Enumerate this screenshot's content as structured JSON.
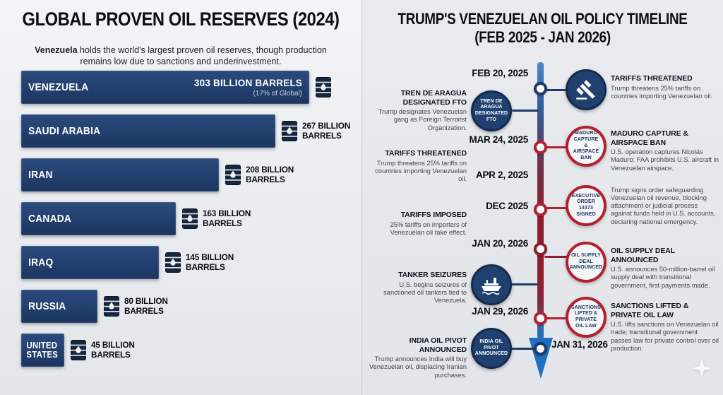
{
  "colors": {
    "navy": "#1e3a66",
    "red": "#b3202e",
    "dark_red": "#8b1f2e",
    "blue": "#1d70c2",
    "bar": "#21406e"
  },
  "left_panel": {
    "title": "GLOBAL PROVEN OIL RESERVES (2024)",
    "subtitle_lead": "Venezuela",
    "subtitle_rest": " holds the world's largest proven oil reserves, though production remains low due to sanctions and underinvestment.",
    "chart_data": {
      "type": "bar",
      "orientation": "horizontal",
      "title": "GLOBAL PROVEN OIL RESERVES (2024)",
      "unit": "billion barrels",
      "xlim": [
        0,
        320
      ],
      "grid": false,
      "legend": "none",
      "categories": [
        "VENEZUELA",
        "SAUDI ARABIA",
        "IRAN",
        "CANADA",
        "IRAQ",
        "RUSSIA",
        "UNITED STATES"
      ],
      "values": [
        303,
        267,
        208,
        163,
        145,
        80,
        45
      ],
      "rows": [
        {
          "country": "VENEZUELA",
          "value": 303,
          "label": "303 BILLION BARRELS",
          "note": "(17% of Global)",
          "label_inside": true
        },
        {
          "country": "SAUDI ARABIA",
          "value": 267,
          "label": "267 BILLION BARRELS"
        },
        {
          "country": "IRAN",
          "value": 208,
          "label": "208 BILLION BARRELS"
        },
        {
          "country": "CANADA",
          "value": 163,
          "label": "163 BILLION BARRELS"
        },
        {
          "country": "IRAQ",
          "value": 145,
          "label": "145 BILLION BARRELS"
        },
        {
          "country": "RUSSIA",
          "value": 80,
          "label": "80 BILLION BARRELS"
        },
        {
          "country": "UNITED STATES",
          "value": 45,
          "label": "45 BILLION BARRELS"
        }
      ]
    }
  },
  "right_panel": {
    "title_line1": "TRUMP'S VENEZUELAN OIL POLICY TIMELINE",
    "title_line2": "(FEB 2025 - JAN 2026)",
    "dates": [
      "FEB 20, 2025",
      "MAR 24, 2025",
      "APR 2, 2025",
      "DEC 2025",
      "JAN 20, 2026",
      "JAN 29, 2026",
      "JAN 31, 2026"
    ],
    "left_events": [
      {
        "heading": "TREN DE ARAGUA DESIGNATED FTO",
        "body": "Trump designates Venezuelan gang as Foreign Terrorist Organization.",
        "badge": "TREN DE ARAGUA DESIGNATED FTO",
        "badge_style": "navy"
      },
      {
        "heading": "TARIFFS THREATENED",
        "body": "Trump threatens 25% tariffs on countries importing Venezuelan oil."
      },
      {
        "heading": "TARIFFS IMPOSED",
        "body": "25% tariffs on importers of Venezuelan oil take effect."
      },
      {
        "heading": "TANKER SEIZURES",
        "body": "U.S. begins seizures of sanctioned oil tankers tied to Venezuela.",
        "badge_icon": "ship",
        "badge_style": "navy"
      },
      {
        "heading": "INDIA OIL PIVOT ANNOUNCED",
        "body": "Trump announces India will buy Venezuelan oil, displacing Iranian purchases.",
        "badge": "INDIA OIL PIVOT ANNOUNCED",
        "badge_style": "navy"
      }
    ],
    "right_events": [
      {
        "heading": "TARIFFS THREATENED",
        "body": "Trump threatens 25% tariffs on countries importing Venezuelan oil.",
        "badge_icon": "gavel",
        "badge_style": "navy"
      },
      {
        "heading": "MADURO CAPTURE & AIRSPACE BAN",
        "body": "U.S. operation captures Nicolás Maduro; FAA prohibits U.S. aircraft in Venezuelan airspace.",
        "badge": "MADURO CAPTURE & AIRSPACE BAN",
        "badge_style": "red"
      },
      {
        "body": "Trump signs order safeguarding Venezuelan oil revenue, blocking attachment or judicial process against funds held in U.S. accounts, declaring national emergency.",
        "badge": "EXECUTIVE ORDER 14373 SIGNED",
        "badge_style": "red"
      },
      {
        "heading": "OIL SUPPLY DEAL ANNOUNCED",
        "body": "U.S. announces 50-million-barrel oil supply deal with transitional government, first payments made.",
        "badge": "OIL SUPPLY DEAL ANNOUNCED",
        "badge_style": "red"
      },
      {
        "heading": "SANCTIONS LIFTED & PRIVATE OIL LAW",
        "body": "U.S. lifts sanctions on Venezuelan oil trade; transitional government passes law for private control over oil production.",
        "badge": "SANCTIONS LIFTED & PRIVATE OIL LAW",
        "badge_style": "red"
      }
    ]
  }
}
